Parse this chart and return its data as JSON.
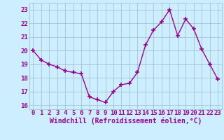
{
  "x": [
    0,
    1,
    2,
    3,
    4,
    5,
    6,
    7,
    8,
    9,
    10,
    11,
    12,
    13,
    14,
    15,
    16,
    17,
    18,
    19,
    20,
    21,
    22,
    23
  ],
  "y": [
    20.0,
    19.3,
    19.0,
    18.8,
    18.5,
    18.4,
    18.3,
    16.6,
    16.4,
    16.2,
    17.0,
    17.5,
    17.6,
    18.4,
    20.4,
    21.5,
    22.1,
    23.0,
    21.1,
    22.3,
    21.6,
    20.1,
    19.0,
    17.9
  ],
  "line_color": "#990099",
  "marker": "+",
  "marker_size": 4,
  "marker_lw": 1.2,
  "line_width": 1.0,
  "bg_color": "#cceeff",
  "grid_color": "#99bbcc",
  "xlabel": "Windchill (Refroidissement éolien,°C)",
  "xlabel_fontsize": 7,
  "tick_fontsize": 6.5,
  "ylim": [
    15.7,
    23.5
  ],
  "xlim": [
    -0.5,
    23.5
  ],
  "yticks": [
    16,
    17,
    18,
    19,
    20,
    21,
    22,
    23
  ],
  "xticks": [
    0,
    1,
    2,
    3,
    4,
    5,
    6,
    7,
    8,
    9,
    10,
    11,
    12,
    13,
    14,
    15,
    16,
    17,
    18,
    19,
    20,
    21,
    22,
    23
  ]
}
